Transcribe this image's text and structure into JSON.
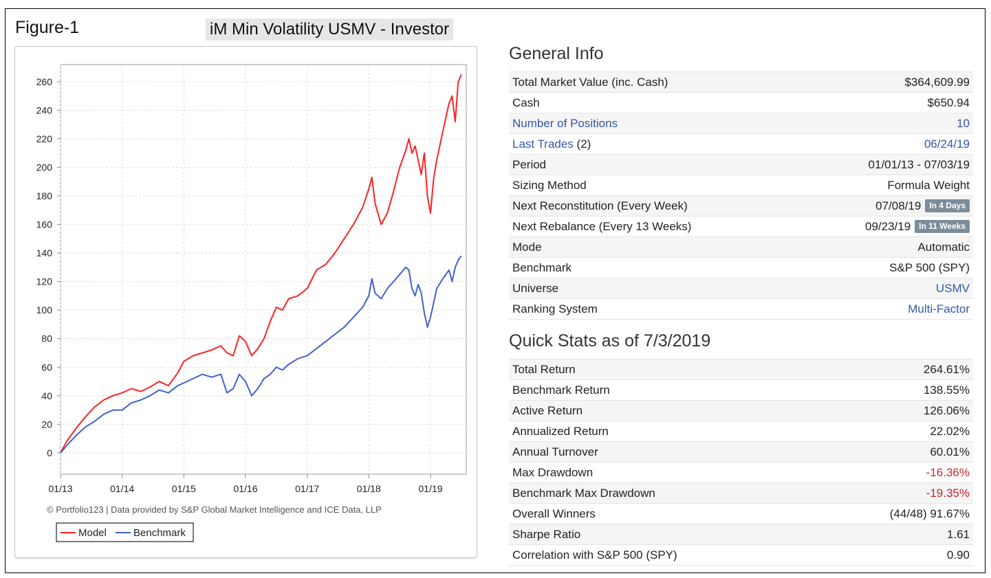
{
  "figure_label": "Figure-1",
  "figure_title": "iM Min Volatility USMV - Investor",
  "general_info": {
    "title": "General Info",
    "rows": [
      {
        "label": "Total Market Value (inc. Cash)",
        "value": "$364,609.99"
      },
      {
        "label": "Cash",
        "value": "$650.94"
      },
      {
        "label": "Number of Positions",
        "value": "10",
        "link": true
      },
      {
        "label": "Last Trades",
        "suffix": " (2)",
        "value": "06/24/19",
        "link": true
      },
      {
        "label": "Period",
        "value": "01/01/13 - 07/03/19"
      },
      {
        "label": "Sizing Method",
        "value": "Formula Weight"
      },
      {
        "label": "Next Reconstitution (Every Week)",
        "value": "07/08/19",
        "badge": "In 4 Days"
      },
      {
        "label": "Next Rebalance (Every 13 Weeks)",
        "value": "09/23/19",
        "badge": "In 11 Weeks"
      },
      {
        "label": "Mode",
        "value": "Automatic"
      },
      {
        "label": "Benchmark",
        "value": "S&P 500 (SPY)"
      },
      {
        "label": "Universe",
        "value": "USMV",
        "link_value": true
      },
      {
        "label": "Ranking System",
        "value": "Multi-Factor",
        "link_value": true
      }
    ]
  },
  "quick_stats": {
    "title": "Quick Stats as of 7/3/2019",
    "rows": [
      {
        "label": "Total Return",
        "value": "264.61%"
      },
      {
        "label": "Benchmark Return",
        "value": "138.55%"
      },
      {
        "label": "Active Return",
        "value": "126.06%"
      },
      {
        "label": "Annualized Return",
        "value": "22.02%"
      },
      {
        "label": "Annual Turnover",
        "value": "60.01%"
      },
      {
        "label": "Max Drawdown",
        "value": "-16.36%",
        "negative": true
      },
      {
        "label": "Benchmark Max Drawdown",
        "value": "-19.35%",
        "negative": true
      },
      {
        "label": "Overall Winners",
        "value": "(44/48) 91.67%"
      },
      {
        "label": "Sharpe Ratio",
        "value": "1.61"
      },
      {
        "label": "Correlation with S&P 500 (SPY)",
        "value": "0.90"
      }
    ]
  },
  "chart_data": {
    "type": "line",
    "title": "",
    "xlabel": "",
    "ylabel": "",
    "ylim": [
      -15,
      272
    ],
    "xlim": [
      2013.0,
      2019.58
    ],
    "y_ticks": [
      0,
      20,
      40,
      60,
      80,
      100,
      120,
      140,
      160,
      180,
      200,
      220,
      240,
      260
    ],
    "x_ticks": [
      {
        "x": 2013,
        "label": "01/13"
      },
      {
        "x": 2014,
        "label": "01/14"
      },
      {
        "x": 2015,
        "label": "01/15"
      },
      {
        "x": 2016,
        "label": "01/16"
      },
      {
        "x": 2017,
        "label": "01/17"
      },
      {
        "x": 2018,
        "label": "01/18"
      },
      {
        "x": 2019,
        "label": "01/19"
      }
    ],
    "grid": true,
    "legend": "bottom-left",
    "footer": "© Portfolio123 | Data provided by S&P Global Market Intelligence and ICE Data, LLP",
    "series": [
      {
        "name": "Model",
        "color": "#ff2020",
        "x": [
          2013.0,
          2013.1,
          2013.25,
          2013.4,
          2013.55,
          2013.7,
          2013.85,
          2014.0,
          2014.15,
          2014.3,
          2014.45,
          2014.6,
          2014.75,
          2014.9,
          2015.0,
          2015.15,
          2015.3,
          2015.45,
          2015.6,
          2015.7,
          2015.8,
          2015.9,
          2016.0,
          2016.1,
          2016.2,
          2016.3,
          2016.4,
          2016.5,
          2016.6,
          2016.7,
          2016.85,
          2017.0,
          2017.15,
          2017.3,
          2017.45,
          2017.6,
          2017.75,
          2017.9,
          2018.0,
          2018.05,
          2018.1,
          2018.2,
          2018.3,
          2018.4,
          2018.5,
          2018.6,
          2018.65,
          2018.7,
          2018.75,
          2018.8,
          2018.85,
          2018.9,
          2018.95,
          2019.0,
          2019.05,
          2019.1,
          2019.2,
          2019.3,
          2019.35,
          2019.4,
          2019.45,
          2019.5
        ],
        "values": [
          0,
          8,
          17,
          25,
          32,
          37,
          40,
          42,
          45,
          43,
          46,
          50,
          47,
          56,
          64,
          68,
          70,
          72,
          75,
          70,
          68,
          82,
          78,
          68,
          73,
          80,
          92,
          102,
          100,
          108,
          110,
          115,
          128,
          132,
          140,
          150,
          160,
          172,
          185,
          193,
          175,
          160,
          168,
          183,
          200,
          212,
          220,
          210,
          215,
          205,
          195,
          210,
          180,
          168,
          192,
          205,
          225,
          245,
          250,
          232,
          260,
          265
        ]
      },
      {
        "name": "Benchmark",
        "color": "#4060d0",
        "x": [
          2013.0,
          2013.1,
          2013.25,
          2013.4,
          2013.55,
          2013.7,
          2013.85,
          2014.0,
          2014.15,
          2014.3,
          2014.45,
          2014.6,
          2014.75,
          2014.9,
          2015.0,
          2015.15,
          2015.3,
          2015.45,
          2015.6,
          2015.7,
          2015.8,
          2015.9,
          2016.0,
          2016.1,
          2016.2,
          2016.3,
          2016.4,
          2016.5,
          2016.6,
          2016.7,
          2016.85,
          2017.0,
          2017.15,
          2017.3,
          2017.45,
          2017.6,
          2017.75,
          2017.9,
          2018.0,
          2018.05,
          2018.1,
          2018.2,
          2018.3,
          2018.4,
          2018.5,
          2018.6,
          2018.65,
          2018.7,
          2018.75,
          2018.8,
          2018.85,
          2018.9,
          2018.95,
          2019.0,
          2019.05,
          2019.1,
          2019.2,
          2019.3,
          2019.35,
          2019.4,
          2019.45,
          2019.5
        ],
        "values": [
          0,
          5,
          12,
          18,
          22,
          27,
          30,
          30,
          35,
          37,
          40,
          44,
          42,
          47,
          49,
          52,
          55,
          53,
          55,
          42,
          45,
          55,
          50,
          40,
          45,
          52,
          55,
          60,
          58,
          62,
          66,
          68,
          73,
          78,
          83,
          88,
          95,
          102,
          110,
          122,
          112,
          108,
          115,
          120,
          125,
          130,
          128,
          115,
          110,
          118,
          112,
          98,
          88,
          95,
          105,
          115,
          122,
          128,
          120,
          130,
          135,
          138
        ]
      }
    ]
  }
}
